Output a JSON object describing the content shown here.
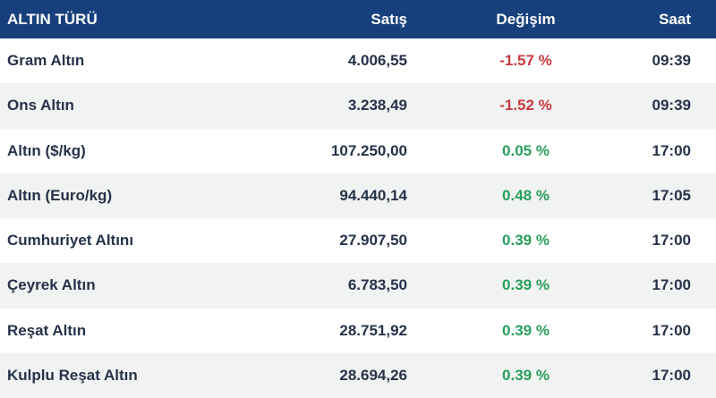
{
  "table": {
    "title": "ALTIN TÜRÜ",
    "columns": [
      {
        "key": "name",
        "label": "ALTIN TÜRÜ"
      },
      {
        "key": "satis",
        "label": "Satış"
      },
      {
        "key": "degisim",
        "label": "Değişim"
      },
      {
        "key": "saat",
        "label": "Saat"
      }
    ],
    "rows": [
      {
        "name": "Gram Altın",
        "satis": "4.006,55",
        "degisim": "-1.57 %",
        "trend": "down",
        "saat": "09:39"
      },
      {
        "name": "Ons Altın",
        "satis": "3.238,49",
        "degisim": "-1.52 %",
        "trend": "down",
        "saat": "09:39"
      },
      {
        "name": "Altın ($/kg)",
        "satis": "107.250,00",
        "degisim": "0.05 %",
        "trend": "up",
        "saat": "17:00"
      },
      {
        "name": "Altın (Euro/kg)",
        "satis": "94.440,14",
        "degisim": "0.48 %",
        "trend": "up",
        "saat": "17:05"
      },
      {
        "name": "Cumhuriyet Altını",
        "satis": "27.907,50",
        "degisim": "0.39 %",
        "trend": "up",
        "saat": "17:00"
      },
      {
        "name": "Çeyrek Altın",
        "satis": "6.783,50",
        "degisim": "0.39 %",
        "trend": "up",
        "saat": "17:00"
      },
      {
        "name": "Reşat Altın",
        "satis": "28.751,92",
        "degisim": "0.39 %",
        "trend": "up",
        "saat": "17:00"
      },
      {
        "name": "Kulplu Reşat Altın",
        "satis": "28.694,26",
        "degisim": "0.39 %",
        "trend": "up",
        "saat": "17:00"
      }
    ]
  },
  "colors": {
    "header_bg": "#173f7c",
    "header_fg": "#ffffff",
    "row_fg": "#26324a",
    "positive": "#28a05c",
    "negative": "#ca3a40",
    "alt_row_bg": "#f1f2f2"
  }
}
